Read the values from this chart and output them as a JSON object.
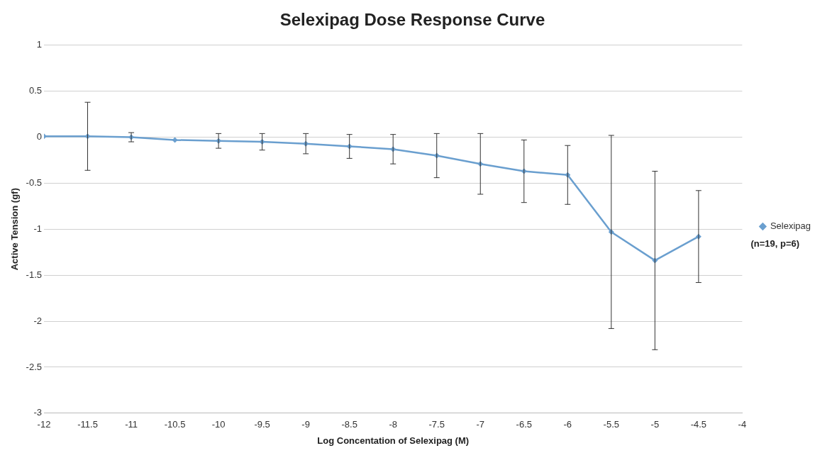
{
  "chart_data": {
    "type": "line",
    "title": "Selexipag Dose Response Curve",
    "xlabel": "Log Concentation of Selexipag (M)",
    "ylabel": "Active Tension (gf)",
    "x": [
      -12,
      -11.5,
      -11,
      -10.5,
      -10,
      -9.5,
      -9,
      -8.5,
      -8,
      -7.5,
      -7,
      -6.5,
      -6,
      -5.5,
      -5,
      -4.5
    ],
    "series": [
      {
        "name": "Selexipag",
        "color": "#6a9fcf",
        "values": [
          0.01,
          0.01,
          0,
          -0.03,
          -0.04,
          -0.05,
          -0.07,
          -0.1,
          -0.13,
          -0.2,
          -0.29,
          -0.37,
          -0.41,
          -1.03,
          -1.34,
          -1.08
        ],
        "errors": [
          null,
          0.37,
          0.05,
          null,
          0.08,
          0.09,
          0.11,
          0.13,
          0.16,
          0.24,
          0.33,
          0.34,
          0.32,
          1.05,
          0.97,
          0.5
        ]
      }
    ],
    "xlim": [
      -12,
      -4
    ],
    "xticks": [
      -12,
      -11.5,
      -11,
      -10.5,
      -10,
      -9.5,
      -9,
      -8.5,
      -8,
      -7.5,
      -7,
      -6.5,
      -6,
      -5.5,
      -5,
      -4.5,
      -4
    ],
    "ylim": [
      -3,
      1
    ],
    "yticks": [
      -3,
      -2.5,
      -2,
      -1.5,
      -1,
      -0.5,
      0,
      0.5,
      1
    ],
    "grid": "y",
    "legend": "right",
    "marker": "diamond",
    "line_style": "solid",
    "annotations": [
      "(n=19, p=6)"
    ]
  }
}
